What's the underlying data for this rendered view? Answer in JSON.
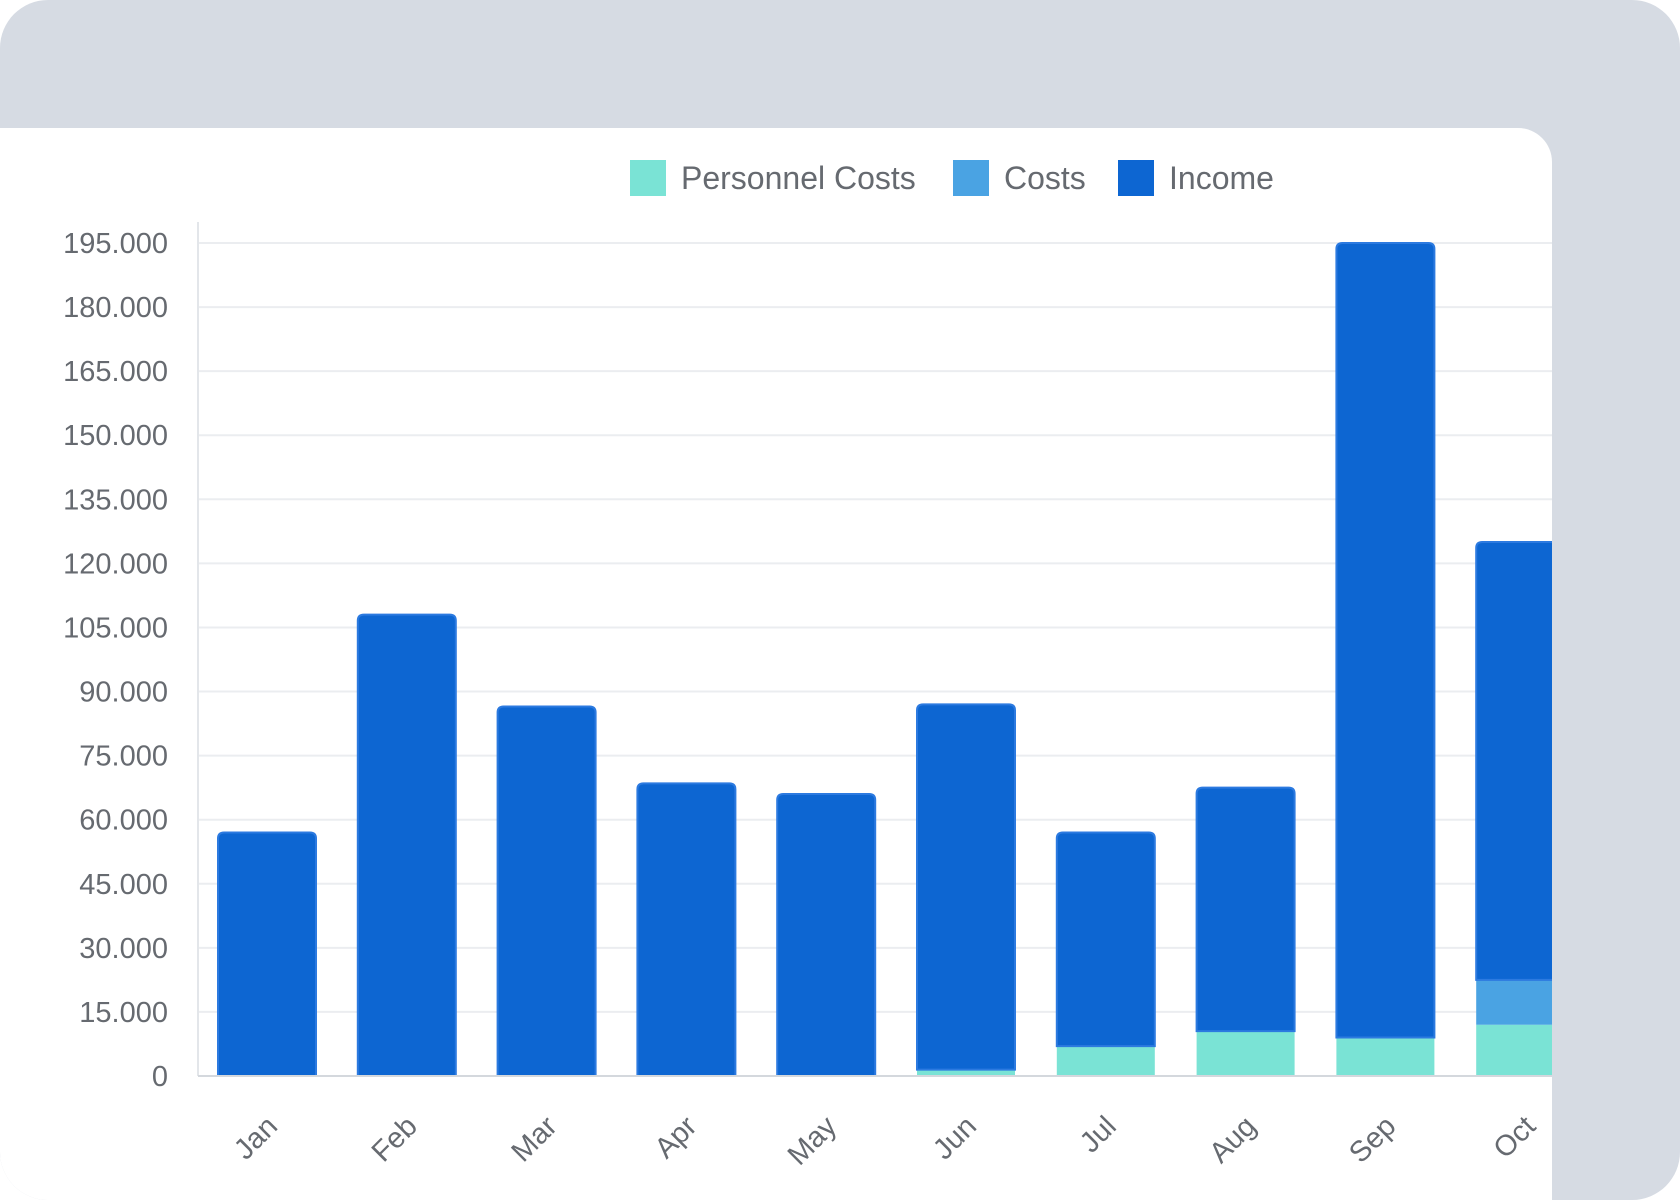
{
  "chart_data": {
    "type": "bar",
    "stacked": true,
    "categories": [
      "Jan",
      "Feb",
      "Mar",
      "Apr",
      "May",
      "Jun",
      "Jul",
      "Aug",
      "Sep",
      "Oct"
    ],
    "series": [
      {
        "name": "Personnel Costs",
        "color": "#7ae3d5",
        "values": [
          0,
          0,
          0,
          0,
          0,
          1500,
          7000,
          10500,
          9000,
          12000
        ]
      },
      {
        "name": "Costs",
        "color": "#4aa3e3",
        "values": [
          0,
          0,
          0,
          0,
          0,
          0,
          0,
          0,
          0,
          10500
        ]
      },
      {
        "name": "Income",
        "color": "#0d66d2",
        "values": [
          57000,
          108000,
          86500,
          68500,
          66000,
          85500,
          50000,
          57000,
          186000,
          102500
        ]
      }
    ],
    "yticks": [
      "0",
      "15.000",
      "30.000",
      "45.000",
      "60.000",
      "75.000",
      "90.000",
      "105.000",
      "120.000",
      "135.000",
      "150.000",
      "165.000",
      "180.000",
      "195.000"
    ],
    "ylim": [
      0,
      195000
    ],
    "ystep": 15000,
    "title": "",
    "xlabel": "",
    "ylabel": "",
    "grid": true,
    "legend_position": "top"
  }
}
